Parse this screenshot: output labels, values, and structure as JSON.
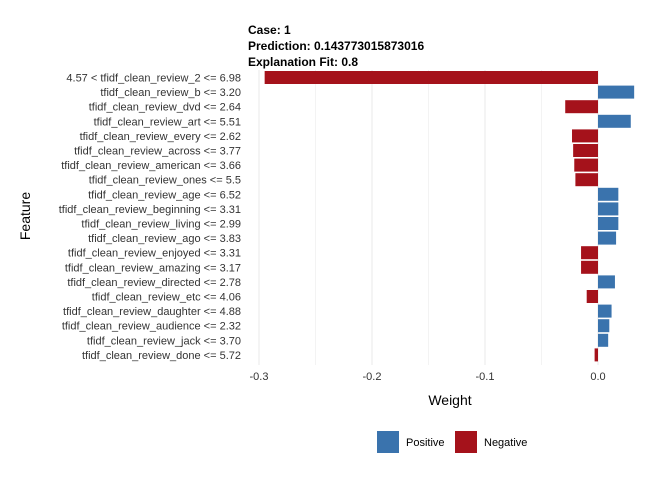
{
  "header": {
    "case": "Case: 1",
    "prediction": "Prediction: 0.143773015873016",
    "fit": "Explanation Fit: 0.8"
  },
  "colors": {
    "positive": "#3a73ad",
    "negative": "#a5121b",
    "grid": "#ebebeb"
  },
  "chart_data": {
    "type": "bar",
    "orientation": "horizontal",
    "xlabel": "Weight",
    "ylabel": "Feature",
    "xlim": [
      -0.3,
      0.03
    ],
    "xticks": [
      -0.3,
      -0.2,
      -0.1,
      0.0
    ],
    "xtick_labels": [
      "-0.3",
      "-0.2",
      "-0.1",
      "0.0"
    ],
    "grid": true,
    "legend_position": "bottom",
    "legend": [
      {
        "label": "Positive",
        "color": "#3a73ad"
      },
      {
        "label": "Negative",
        "color": "#a5121b"
      }
    ],
    "categories": [
      "4.57 < tfidf_clean_review_2 <= 6.98",
      "tfidf_clean_review_b <= 3.20",
      "tfidf_clean_review_dvd <= 2.64",
      "tfidf_clean_review_art <= 5.51",
      "tfidf_clean_review_every <= 2.62",
      "tfidf_clean_review_across <= 3.77",
      "tfidf_clean_review_american <= 3.66",
      "tfidf_clean_review_ones <= 5.5",
      "tfidf_clean_review_age <= 6.52",
      "tfidf_clean_review_beginning <= 3.31",
      "tfidf_clean_review_living <= 2.99",
      "tfidf_clean_review_ago <= 3.83",
      "tfidf_clean_review_enjoyed <= 3.31",
      "tfidf_clean_review_amazing <= 3.17",
      "tfidf_clean_review_directed <= 2.78",
      "tfidf_clean_review_etc <= 4.06",
      "tfidf_clean_review_daughter <= 4.88",
      "tfidf_clean_review_audience <= 2.32",
      "tfidf_clean_review_jack <= 3.70",
      "tfidf_clean_review_done <= 5.72"
    ],
    "values": [
      -0.295,
      0.032,
      -0.029,
      0.029,
      -0.023,
      -0.022,
      -0.021,
      -0.02,
      0.018,
      0.018,
      0.018,
      0.016,
      -0.015,
      -0.015,
      0.015,
      -0.01,
      0.012,
      0.01,
      0.009,
      -0.003
    ]
  }
}
